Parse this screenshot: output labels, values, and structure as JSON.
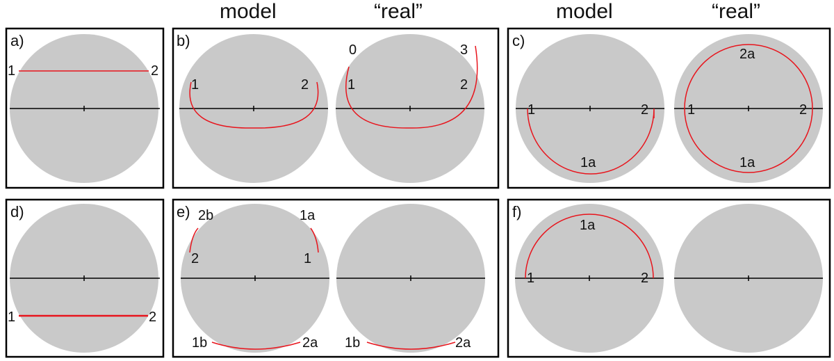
{
  "headers": [
    "model",
    "“real”",
    "model",
    "“real”"
  ],
  "panels": [
    {
      "id": "a",
      "label": "a)",
      "discs": [
        {
          "labels": [
            "1",
            "2"
          ]
        }
      ]
    },
    {
      "id": "b",
      "label": "b)",
      "discs": [
        {
          "labels": [
            "1",
            "2"
          ]
        },
        {
          "labels": [
            "0",
            "3",
            "1",
            "2"
          ]
        }
      ]
    },
    {
      "id": "c",
      "label": "c)",
      "discs": [
        {
          "labels": [
            "1",
            "2",
            "1a"
          ]
        },
        {
          "labels": [
            "2a",
            "1",
            "2",
            "1a"
          ]
        }
      ]
    },
    {
      "id": "d",
      "label": "d)",
      "discs": [
        {
          "labels": [
            "1",
            "2"
          ]
        }
      ]
    },
    {
      "id": "e",
      "label": "e)",
      "discs": [
        {
          "labels": [
            "2b",
            "1a",
            "2",
            "1",
            "1b",
            "2a"
          ]
        },
        {
          "labels": [
            "1b",
            "2a"
          ]
        }
      ]
    },
    {
      "id": "f",
      "label": "f)",
      "discs": [
        {
          "labels": [
            "1a",
            "1",
            "2"
          ]
        },
        {
          "labels": []
        }
      ]
    }
  ],
  "colors": {
    "disc": "#c9c9c9",
    "track": "#e8141c",
    "frame": "#000000",
    "axis": "#000000"
  }
}
